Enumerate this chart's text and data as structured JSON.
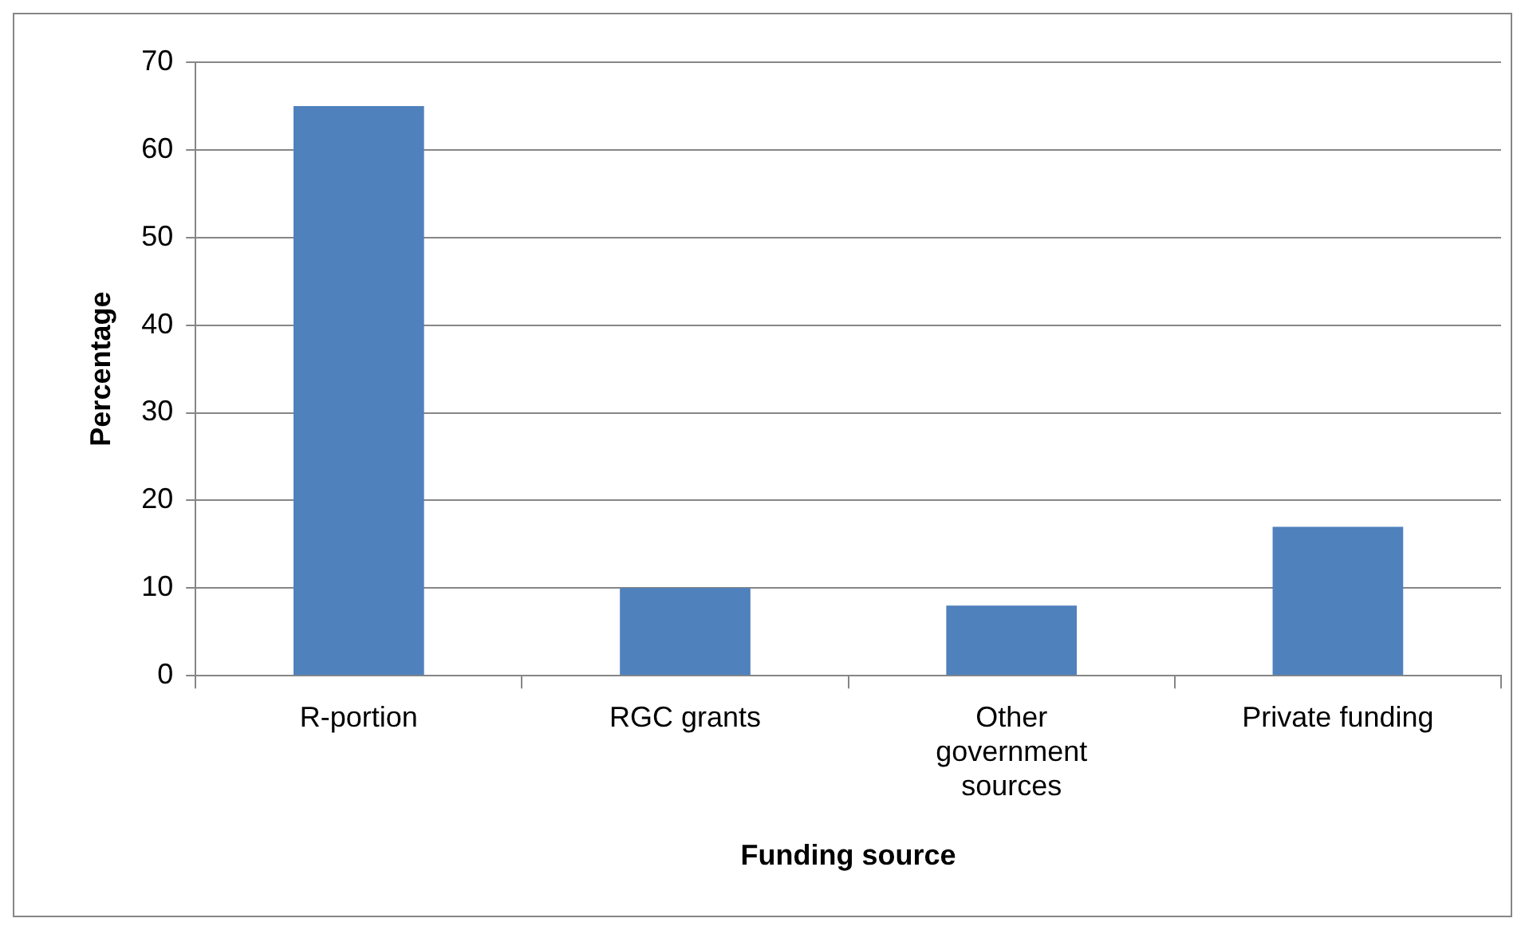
{
  "chart_data": {
    "type": "bar",
    "xlabel": "Funding source",
    "ylabel": "Percentage",
    "categories": [
      "R-portion",
      "RGC grants",
      "Other government sources",
      "Private funding"
    ],
    "values": [
      65,
      10,
      8,
      17
    ],
    "color": "#4f81bd",
    "ylim": [
      0,
      70
    ],
    "yticks": [
      0,
      10,
      20,
      30,
      40,
      50,
      60,
      70
    ],
    "grid": "y",
    "legend": false
  }
}
